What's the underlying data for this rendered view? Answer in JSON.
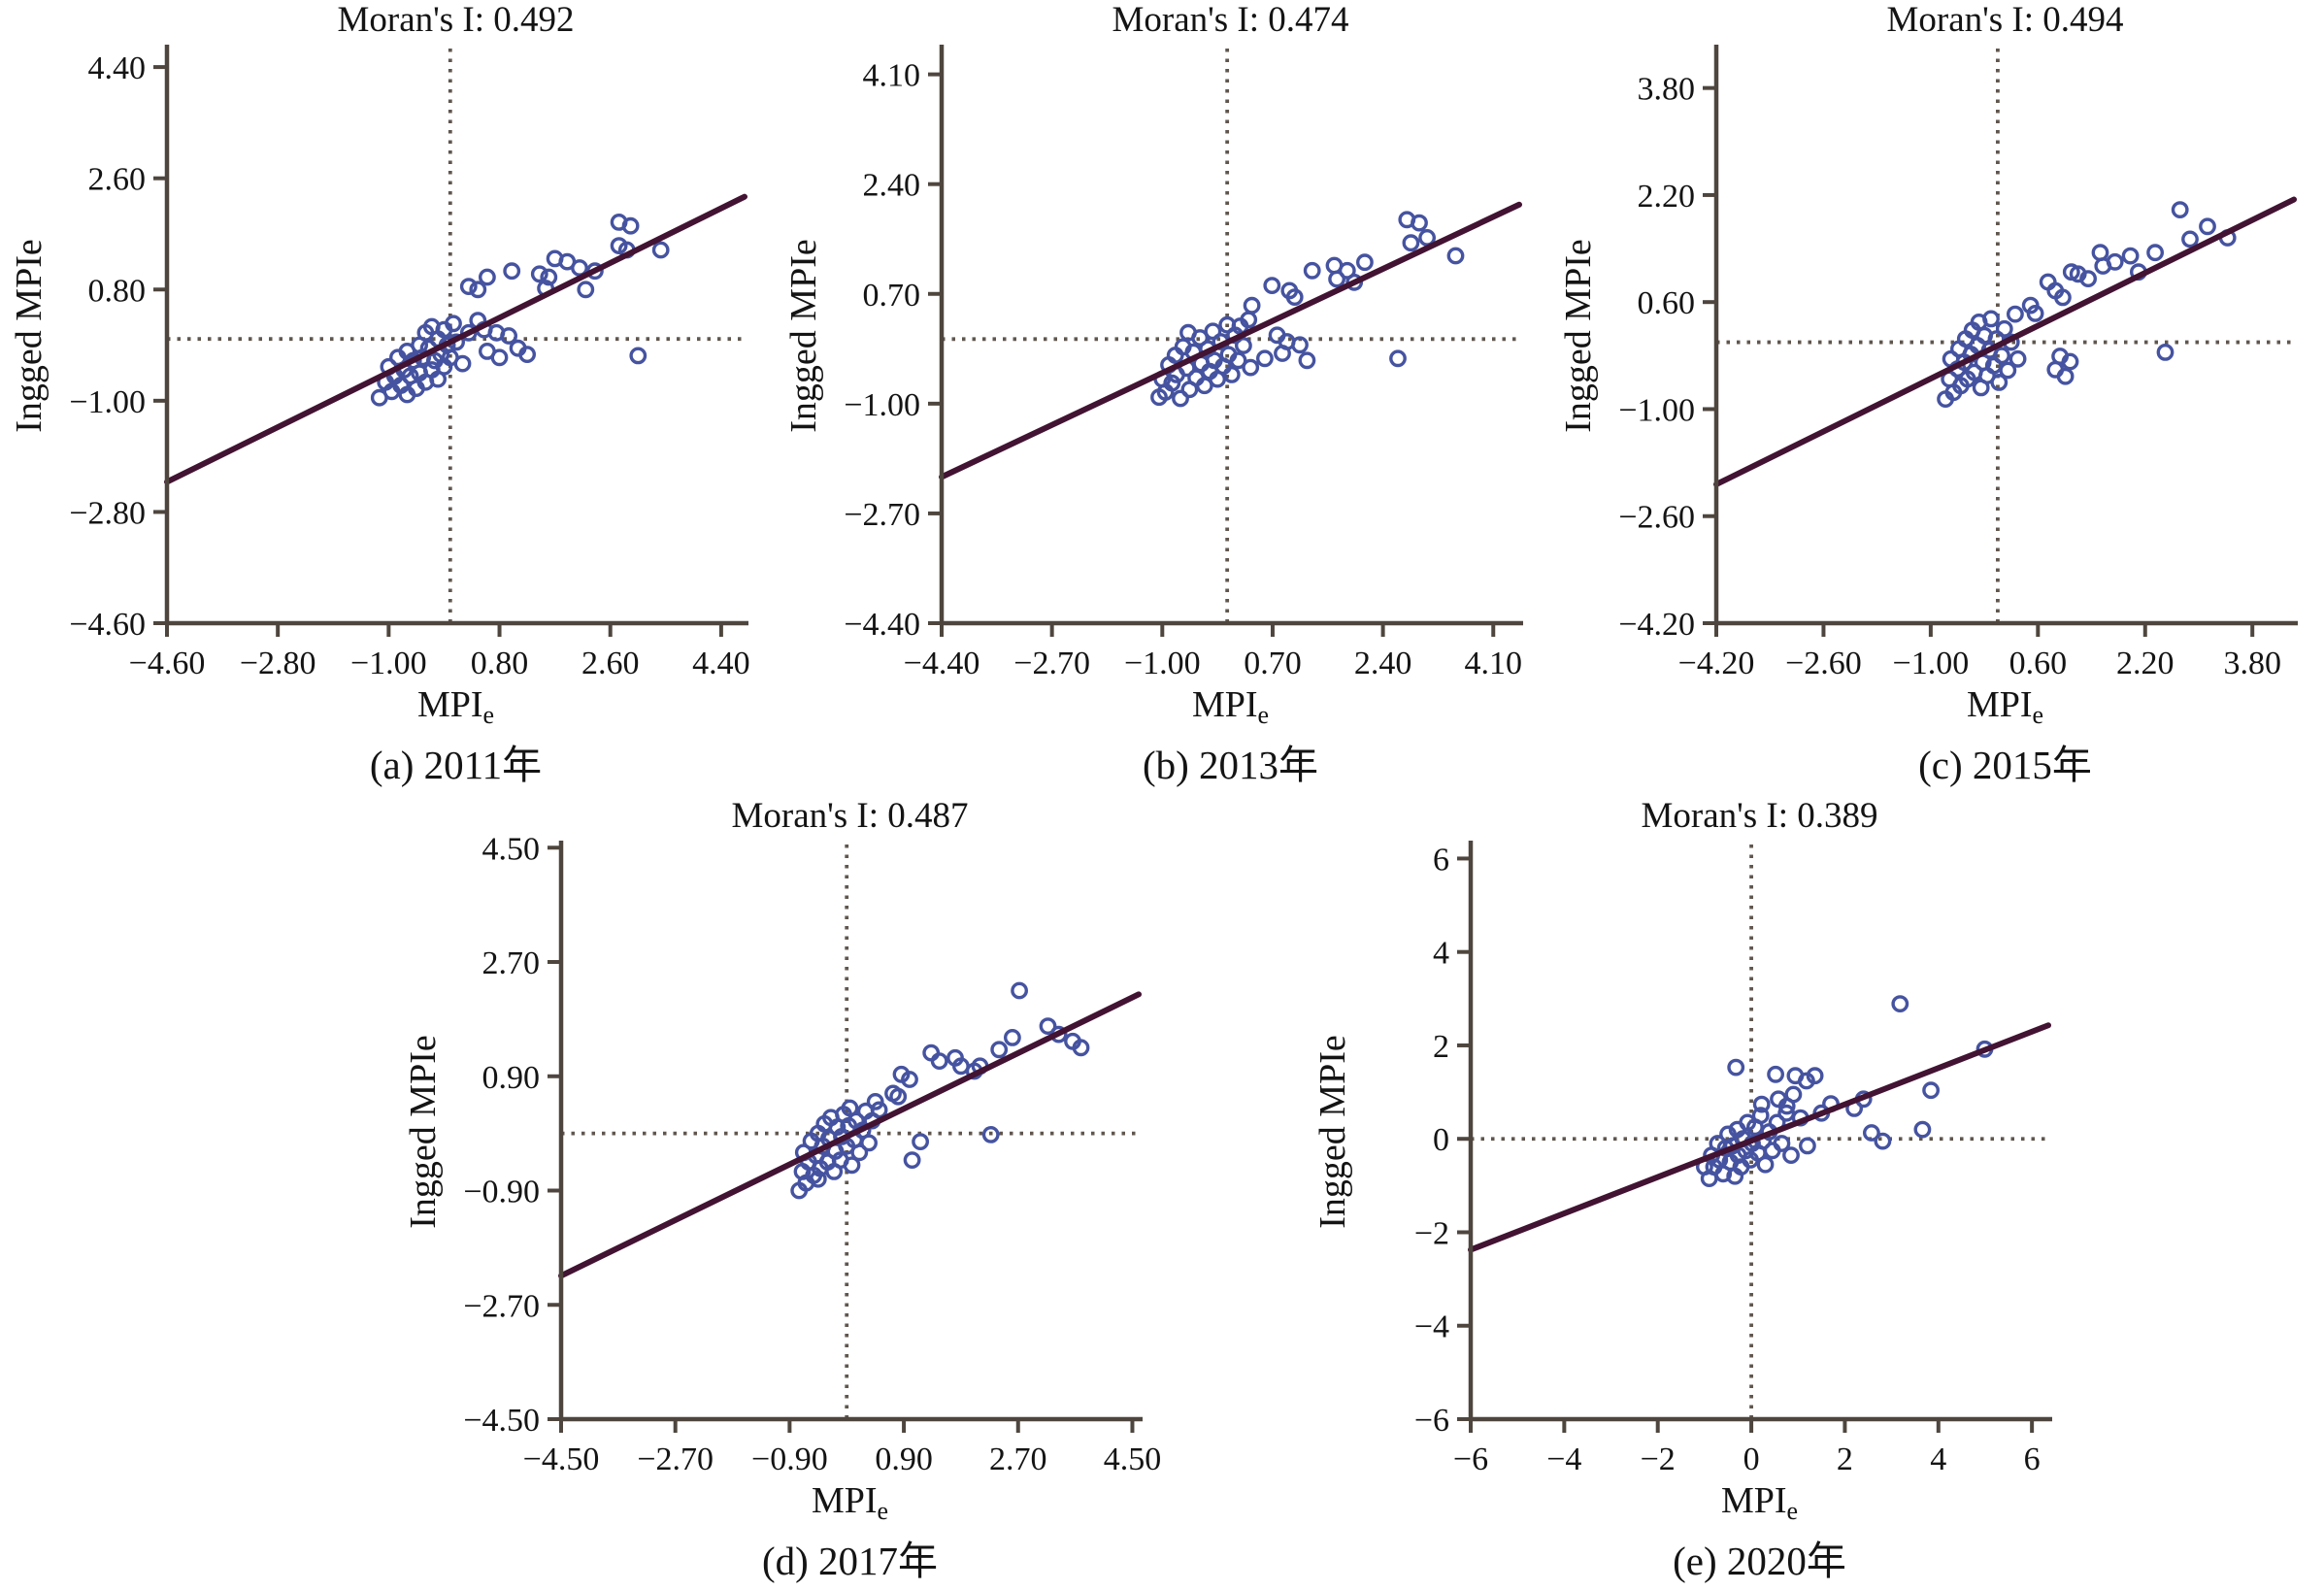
{
  "styles": {
    "background": "#ffffff",
    "point_color": "#4553a0",
    "point_fill": "none",
    "line_color": "#421332",
    "dash_color": "#5f564e",
    "axis_color": "#4e463e",
    "text_color": "#141414"
  },
  "chart_data": [
    {
      "id": "a",
      "type": "scatter",
      "title": "Moran's I: 0.492",
      "moran_i": 0.492,
      "caption": "(a) 2011年",
      "ylabel": "Ingged MPIe",
      "xlabel_main": "MPI",
      "xlabel_sub": "e",
      "x_range": [
        -4.6,
        4.78
      ],
      "y_range": [
        -4.6,
        4.7
      ],
      "x_ticks": [
        -4.6,
        -2.8,
        -1.0,
        0.8,
        2.6,
        4.4
      ],
      "x_tick_labels": [
        "-4.60",
        "-2.80",
        "-1.00",
        "0.80",
        "2.60",
        "4.40"
      ],
      "y_ticks": [
        4.4,
        2.6,
        0.8,
        -1.0,
        -2.8,
        -4.6
      ],
      "y_tick_labels": [
        "4.40",
        "2.60",
        "0.80",
        "-1.00",
        "-2.80",
        "-4.60"
      ],
      "mean_x": 0,
      "mean_y": 0,
      "regression": {
        "slope": 0.492,
        "intercept": -0.05
      },
      "points": [
        [
          -1.15,
          -0.95
        ],
        [
          -1.05,
          -0.7
        ],
        [
          -1.0,
          -0.45
        ],
        [
          -0.95,
          -0.85
        ],
        [
          -0.9,
          -0.6
        ],
        [
          -0.85,
          -0.3
        ],
        [
          -0.8,
          -0.75
        ],
        [
          -0.75,
          -0.5
        ],
        [
          -0.7,
          -0.2
        ],
        [
          -0.7,
          -0.9
        ],
        [
          -0.65,
          -0.6
        ],
        [
          -0.6,
          -0.35
        ],
        [
          -0.55,
          -0.8
        ],
        [
          -0.5,
          -0.1
        ],
        [
          -0.5,
          -0.55
        ],
        [
          -0.45,
          -0.3
        ],
        [
          -0.4,
          -0.7
        ],
        [
          -0.4,
          0.1
        ],
        [
          -0.35,
          -0.15
        ],
        [
          -0.3,
          -0.5
        ],
        [
          -0.3,
          0.2
        ],
        [
          -0.25,
          -0.35
        ],
        [
          -0.2,
          0.0
        ],
        [
          -0.2,
          -0.65
        ],
        [
          -0.15,
          -0.25
        ],
        [
          -0.1,
          0.15
        ],
        [
          -0.1,
          -0.45
        ],
        [
          -0.05,
          -0.1
        ],
        [
          0.0,
          -0.3
        ],
        [
          0.05,
          0.25
        ],
        [
          0.1,
          -0.05
        ],
        [
          0.2,
          -0.4
        ],
        [
          0.3,
          0.1
        ],
        [
          0.45,
          0.3
        ],
        [
          0.55,
          0.15
        ],
        [
          0.6,
          -0.2
        ],
        [
          0.75,
          0.1
        ],
        [
          0.8,
          -0.3
        ],
        [
          0.95,
          0.05
        ],
        [
          1.1,
          -0.15
        ],
        [
          1.25,
          -0.25
        ],
        [
          0.3,
          0.85
        ],
        [
          0.45,
          0.8
        ],
        [
          0.6,
          1.0
        ],
        [
          1.0,
          1.1
        ],
        [
          1.45,
          1.05
        ],
        [
          1.6,
          1.0
        ],
        [
          1.55,
          0.82
        ],
        [
          1.7,
          1.3
        ],
        [
          1.9,
          1.25
        ],
        [
          2.1,
          1.15
        ],
        [
          2.2,
          0.8
        ],
        [
          2.35,
          1.1
        ],
        [
          2.74,
          1.89
        ],
        [
          2.93,
          1.83
        ],
        [
          2.74,
          1.51
        ],
        [
          2.87,
          1.44
        ],
        [
          3.42,
          1.44
        ],
        [
          3.05,
          -0.27
        ]
      ]
    },
    {
      "id": "b",
      "type": "scatter",
      "title": "Moran's I: 0.474",
      "moran_i": 0.474,
      "caption": "(b) 2013年",
      "ylabel": "Ingged MPIe",
      "xlabel_main": "MPI",
      "xlabel_sub": "e",
      "x_range": [
        -4.4,
        4.5
      ],
      "y_range": [
        -4.4,
        4.5
      ],
      "x_ticks": [
        -4.4,
        -2.7,
        -1.0,
        0.7,
        2.4,
        4.1
      ],
      "x_tick_labels": [
        "-4.40",
        "-2.70",
        "-1.00",
        "0.70",
        "2.40",
        "4.10"
      ],
      "y_ticks": [
        4.1,
        2.4,
        0.7,
        -1.0,
        -2.7,
        -4.4
      ],
      "y_tick_labels": [
        "4.10",
        "2.40",
        "0.70",
        "-1.00",
        "-2.70",
        "-4.40"
      ],
      "mean_x": 0,
      "mean_y": 0,
      "regression": {
        "slope": 0.474,
        "intercept": -0.05
      },
      "points": [
        [
          -1.05,
          -0.9
        ],
        [
          -1.0,
          -0.62
        ],
        [
          -0.95,
          -0.82
        ],
        [
          -0.9,
          -0.4
        ],
        [
          -0.85,
          -0.68
        ],
        [
          -0.8,
          -0.25
        ],
        [
          -0.78,
          -0.55
        ],
        [
          -0.72,
          -0.92
        ],
        [
          -0.68,
          -0.12
        ],
        [
          -0.62,
          -0.45
        ],
        [
          -0.6,
          0.1
        ],
        [
          -0.58,
          -0.78
        ],
        [
          -0.52,
          -0.2
        ],
        [
          -0.48,
          -0.6
        ],
        [
          -0.42,
          0.02
        ],
        [
          -0.4,
          -0.38
        ],
        [
          -0.35,
          -0.72
        ],
        [
          -0.3,
          -0.15
        ],
        [
          -0.27,
          -0.5
        ],
        [
          -0.22,
          0.12
        ],
        [
          -0.2,
          -0.33
        ],
        [
          -0.15,
          -0.62
        ],
        [
          -0.1,
          -0.04
        ],
        [
          -0.06,
          -0.42
        ],
        [
          0.0,
          0.22
        ],
        [
          0.02,
          -0.24
        ],
        [
          0.07,
          -0.55
        ],
        [
          0.12,
          0.06
        ],
        [
          0.17,
          -0.33
        ],
        [
          0.2,
          0.2
        ],
        [
          0.25,
          -0.1
        ],
        [
          0.33,
          0.3
        ],
        [
          0.36,
          -0.44
        ],
        [
          0.38,
          0.52
        ],
        [
          0.58,
          -0.3
        ],
        [
          0.69,
          0.83
        ],
        [
          0.77,
          0.06
        ],
        [
          0.85,
          -0.22
        ],
        [
          0.92,
          -0.04
        ],
        [
          1.12,
          -0.09
        ],
        [
          1.23,
          -0.33
        ],
        [
          0.96,
          0.75
        ],
        [
          1.04,
          0.65
        ],
        [
          1.31,
          1.06
        ],
        [
          1.65,
          1.14
        ],
        [
          1.69,
          0.93
        ],
        [
          1.85,
          1.06
        ],
        [
          1.96,
          0.88
        ],
        [
          2.12,
          1.19
        ],
        [
          2.77,
          1.85
        ],
        [
          2.96,
          1.8
        ],
        [
          2.83,
          1.49
        ],
        [
          3.08,
          1.57
        ],
        [
          3.52,
          1.29
        ],
        [
          2.63,
          -0.3
        ]
      ]
    },
    {
      "id": "c",
      "type": "scatter",
      "title": "Moran's I: 0.494",
      "moran_i": 0.494,
      "caption": "(c) 2015年",
      "ylabel": "Ingged MPIe",
      "xlabel_main": "MPI",
      "xlabel_sub": "e",
      "x_range": [
        -4.2,
        4.42
      ],
      "y_range": [
        -4.2,
        4.39
      ],
      "x_ticks": [
        -4.2,
        -2.6,
        -1.0,
        0.6,
        2.2,
        3.8
      ],
      "x_tick_labels": [
        "-4.20",
        "-2.60",
        "-1.00",
        "0.60",
        "2.20",
        "3.80"
      ],
      "y_ticks": [
        3.8,
        2.2,
        0.6,
        -1.0,
        -2.6,
        -4.2
      ],
      "y_tick_labels": [
        "3.80",
        "2.20",
        "0.60",
        "-1.00",
        "-2.60",
        "-4.20"
      ],
      "mean_x": 0,
      "mean_y": 0,
      "regression": {
        "slope": 0.494,
        "intercept": -0.05
      },
      "points": [
        [
          -0.78,
          -0.85
        ],
        [
          -0.72,
          -0.55
        ],
        [
          -0.7,
          -0.25
        ],
        [
          -0.66,
          -0.75
        ],
        [
          -0.6,
          -0.4
        ],
        [
          -0.58,
          -0.1
        ],
        [
          -0.55,
          -0.65
        ],
        [
          -0.5,
          -0.3
        ],
        [
          -0.48,
          0.05
        ],
        [
          -0.45,
          -0.55
        ],
        [
          -0.4,
          -0.18
        ],
        [
          -0.38,
          0.18
        ],
        [
          -0.35,
          -0.45
        ],
        [
          -0.3,
          -0.05
        ],
        [
          -0.28,
          0.3
        ],
        [
          -0.25,
          -0.68
        ],
        [
          -0.22,
          -0.3
        ],
        [
          -0.2,
          0.1
        ],
        [
          -0.16,
          -0.5
        ],
        [
          -0.12,
          -0.12
        ],
        [
          -0.1,
          0.35
        ],
        [
          -0.06,
          -0.35
        ],
        [
          -0.02,
          0.05
        ],
        [
          0.02,
          -0.6
        ],
        [
          0.06,
          -0.2
        ],
        [
          0.1,
          0.2
        ],
        [
          0.15,
          -0.42
        ],
        [
          0.2,
          0.0
        ],
        [
          0.26,
          0.42
        ],
        [
          0.3,
          -0.25
        ],
        [
          0.49,
          0.55
        ],
        [
          0.56,
          0.43
        ],
        [
          0.75,
          0.9
        ],
        [
          0.86,
          0.77
        ],
        [
          0.93,
          -0.21
        ],
        [
          0.97,
          0.67
        ],
        [
          1.01,
          -0.51
        ],
        [
          1.08,
          -0.29
        ],
        [
          0.86,
          -0.41
        ],
        [
          1.1,
          1.05
        ],
        [
          1.2,
          1.02
        ],
        [
          1.35,
          0.95
        ],
        [
          1.53,
          1.34
        ],
        [
          1.57,
          1.14
        ],
        [
          1.75,
          1.2
        ],
        [
          1.98,
          1.29
        ],
        [
          2.1,
          1.05
        ],
        [
          2.35,
          1.34
        ],
        [
          2.72,
          1.98
        ],
        [
          2.87,
          1.54
        ],
        [
          3.13,
          1.73
        ],
        [
          3.43,
          1.56
        ],
        [
          2.5,
          -0.15
        ]
      ]
    },
    {
      "id": "d",
      "type": "scatter",
      "title": "Moran's I: 0.487",
      "moran_i": 0.487,
      "caption": "(d) 2017年",
      "ylabel": "Ingged MPIe",
      "xlabel_main": "MPI",
      "xlabel_sub": "e",
      "x_range": [
        -4.5,
        4.6
      ],
      "y_range": [
        -4.5,
        4.55
      ],
      "x_ticks": [
        -4.5,
        -2.7,
        -0.9,
        0.9,
        2.7,
        4.5
      ],
      "x_tick_labels": [
        "-4.50",
        "-2.70",
        "-0.90",
        "0.90",
        "2.70",
        "4.50"
      ],
      "y_ticks": [
        4.5,
        2.7,
        0.9,
        -0.9,
        -2.7,
        -4.5
      ],
      "y_tick_labels": [
        "4.50",
        "2.70",
        "0.90",
        "-0.90",
        "-2.70",
        "-4.50"
      ],
      "mean_x": 0,
      "mean_y": 0,
      "regression": {
        "slope": 0.487,
        "intercept": -0.05
      },
      "points": [
        [
          -0.75,
          -0.9
        ],
        [
          -0.7,
          -0.6
        ],
        [
          -0.68,
          -0.3
        ],
        [
          -0.64,
          -0.78
        ],
        [
          -0.6,
          -0.45
        ],
        [
          -0.56,
          -0.12
        ],
        [
          -0.52,
          -0.66
        ],
        [
          -0.48,
          -0.35
        ],
        [
          -0.45,
          0.0
        ],
        [
          -0.45,
          -0.72
        ],
        [
          -0.42,
          -0.55
        ],
        [
          -0.38,
          -0.2
        ],
        [
          -0.35,
          0.15
        ],
        [
          -0.3,
          -0.45
        ],
        [
          -0.28,
          -0.08
        ],
        [
          -0.25,
          0.25
        ],
        [
          -0.2,
          -0.6
        ],
        [
          -0.18,
          -0.28
        ],
        [
          -0.15,
          0.1
        ],
        [
          -0.1,
          -0.42
        ],
        [
          -0.08,
          -0.05
        ],
        [
          -0.05,
          0.3
        ],
        [
          0.0,
          -0.2
        ],
        [
          0.03,
          0.12
        ],
        [
          0.05,
          0.4
        ],
        [
          0.08,
          -0.5
        ],
        [
          0.12,
          -0.1
        ],
        [
          0.15,
          0.2
        ],
        [
          0.2,
          -0.3
        ],
        [
          0.25,
          0.05
        ],
        [
          0.3,
          0.35
        ],
        [
          0.35,
          -0.15
        ],
        [
          0.4,
          0.2
        ],
        [
          0.45,
          0.5
        ],
        [
          0.51,
          0.37
        ],
        [
          0.73,
          0.63
        ],
        [
          0.81,
          0.58
        ],
        [
          0.86,
          0.93
        ],
        [
          0.99,
          0.85
        ],
        [
          1.03,
          -0.42
        ],
        [
          1.16,
          -0.13
        ],
        [
          1.33,
          1.27
        ],
        [
          1.46,
          1.14
        ],
        [
          1.71,
          1.19
        ],
        [
          1.8,
          1.06
        ],
        [
          2.01,
          0.98
        ],
        [
          2.1,
          1.06
        ],
        [
          2.4,
          1.32
        ],
        [
          2.61,
          1.51
        ],
        [
          2.72,
          2.25
        ],
        [
          3.17,
          1.69
        ],
        [
          3.34,
          1.56
        ],
        [
          3.56,
          1.45
        ],
        [
          3.69,
          1.35
        ],
        [
          2.27,
          -0.02
        ]
      ]
    },
    {
      "id": "e",
      "type": "scatter",
      "title": "Moran's I: 0.389",
      "moran_i": 0.389,
      "caption": "(e) 2020年",
      "ylabel": "Ingged MPIe",
      "xlabel_main": "MPI",
      "xlabel_sub": "e",
      "x_range": [
        -6,
        6.35
      ],
      "y_range": [
        -6,
        6.3
      ],
      "x_ticks": [
        -6,
        -4,
        -2,
        0,
        2,
        4,
        6
      ],
      "x_tick_labels": [
        "-6",
        "-4",
        "-2",
        "0",
        "2",
        "4",
        "6"
      ],
      "y_ticks": [
        6,
        4,
        2,
        0,
        -2,
        -4,
        -6
      ],
      "y_tick_labels": [
        "6",
        "4",
        "2",
        "0",
        "-2",
        "-4",
        "-6"
      ],
      "mean_x": 0,
      "mean_y": 0,
      "regression": {
        "slope": 0.389,
        "intercept": -0.04
      },
      "points": [
        [
          -1.0,
          -0.6
        ],
        [
          -0.9,
          -0.85
        ],
        [
          -0.85,
          -0.35
        ],
        [
          -0.8,
          -0.6
        ],
        [
          -0.72,
          -0.1
        ],
        [
          -0.68,
          -0.45
        ],
        [
          -0.6,
          -0.75
        ],
        [
          -0.55,
          -0.2
        ],
        [
          -0.5,
          0.1
        ],
        [
          -0.45,
          -0.5
        ],
        [
          -0.4,
          -0.15
        ],
        [
          -0.35,
          -0.8
        ],
        [
          -0.3,
          0.2
        ],
        [
          -0.28,
          -0.35
        ],
        [
          -0.22,
          -0.6
        ],
        [
          -0.18,
          0.0
        ],
        [
          -0.12,
          -0.25
        ],
        [
          -0.08,
          0.35
        ],
        [
          -0.02,
          -0.45
        ],
        [
          0.02,
          -0.1
        ],
        [
          0.08,
          0.25
        ],
        [
          0.14,
          -0.3
        ],
        [
          0.2,
          0.5
        ],
        [
          0.25,
          -0.05
        ],
        [
          0.3,
          -0.55
        ],
        [
          0.38,
          0.15
        ],
        [
          0.45,
          -0.25
        ],
        [
          0.55,
          0.35
        ],
        [
          0.65,
          -0.1
        ],
        [
          0.75,
          0.55
        ],
        [
          0.85,
          -0.35
        ],
        [
          1.05,
          0.45
        ],
        [
          1.2,
          -0.15
        ],
        [
          -0.33,
          1.53
        ],
        [
          0.52,
          1.38
        ],
        [
          0.94,
          1.35
        ],
        [
          1.18,
          1.24
        ],
        [
          1.36,
          1.35
        ],
        [
          0.22,
          0.74
        ],
        [
          0.58,
          0.85
        ],
        [
          0.76,
          0.7
        ],
        [
          0.9,
          0.95
        ],
        [
          1.5,
          0.55
        ],
        [
          1.7,
          0.75
        ],
        [
          2.2,
          0.65
        ],
        [
          2.4,
          0.85
        ],
        [
          2.57,
          0.13
        ],
        [
          2.81,
          -0.05
        ],
        [
          3.18,
          2.89
        ],
        [
          3.66,
          0.2
        ],
        [
          3.84,
          1.04
        ],
        [
          4.99,
          1.92
        ]
      ]
    }
  ]
}
